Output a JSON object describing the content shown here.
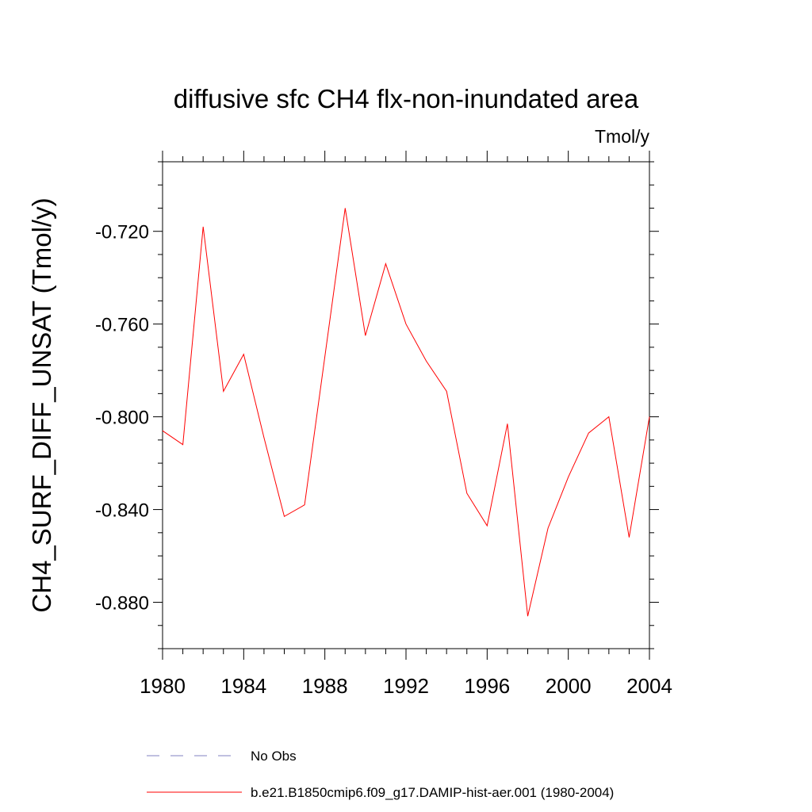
{
  "chart_data": {
    "type": "line",
    "title": "diffusive sfc CH4 flx-non-inundated area",
    "units": "Tmol/y",
    "ylabel": "CH4_SURF_DIFF_UNSAT  (Tmol/y)",
    "xlabel": "",
    "xlim": [
      1980,
      2004
    ],
    "ylim": [
      -0.9,
      -0.69
    ],
    "x_ticks": [
      1980,
      1984,
      1988,
      1992,
      1996,
      2000,
      2004
    ],
    "x_tick_labels": [
      "1980",
      "1984",
      "1988",
      "1992",
      "1996",
      "2000",
      "2004"
    ],
    "y_ticks": [
      -0.72,
      -0.76,
      -0.8,
      -0.84,
      -0.88
    ],
    "y_tick_labels": [
      "-0.720",
      "-0.760",
      "-0.800",
      "-0.840",
      "-0.880"
    ],
    "grid": false,
    "legend_position": "bottom",
    "series": [
      {
        "name": "b.e21.B1850cmip6.f09_g17.DAMIP-hist-aer.001 (1980-2004)",
        "color": "#ff0000",
        "style": "solid",
        "x": [
          1980,
          1981,
          1982,
          1983,
          1984,
          1985,
          1986,
          1987,
          1988,
          1989,
          1990,
          1991,
          1992,
          1993,
          1994,
          1995,
          1996,
          1997,
          1998,
          1999,
          2000,
          2001,
          2002,
          2003,
          2004
        ],
        "values": [
          -0.806,
          -0.812,
          -0.718,
          -0.789,
          -0.773,
          -0.809,
          -0.843,
          -0.838,
          -0.774,
          -0.71,
          -0.765,
          -0.734,
          -0.76,
          -0.776,
          -0.789,
          -0.833,
          -0.847,
          -0.803,
          -0.886,
          -0.848,
          -0.826,
          -0.807,
          -0.8,
          -0.852,
          -0.8
        ]
      }
    ],
    "legend": [
      {
        "label": "No Obs",
        "color": "#8080c0",
        "style": "dashed"
      },
      {
        "label": "b.e21.B1850cmip6.f09_g17.DAMIP-hist-aer.001 (1980-2004)",
        "color": "#ff0000",
        "style": "solid"
      }
    ]
  }
}
